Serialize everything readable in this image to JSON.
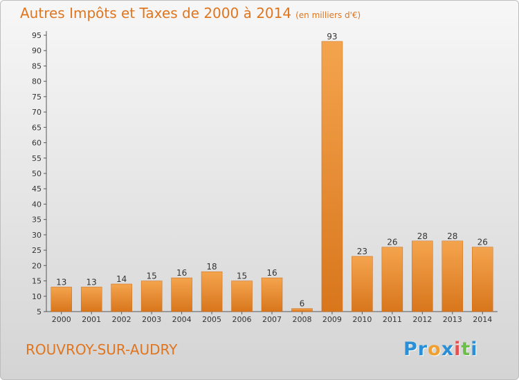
{
  "header": {
    "title": "Autres Impôts et Taxes de 2000 à 2014",
    "unit": "(en milliers d'€)"
  },
  "footer": {
    "commune": "ROUVROY-SUR-AUDRY",
    "logo_letters": [
      "P",
      "r",
      "o",
      "x",
      "i",
      "t",
      "i"
    ],
    "logo_colors": [
      "#2a8fd6",
      "#2a8fd6",
      "#f0a030",
      "#2a8fd6",
      "#e85050",
      "#6cc04a",
      "#2a8fd6"
    ]
  },
  "colors": {
    "title": "#e0751f",
    "bar_light": "#f4a44e",
    "bar_dark": "#d8761c",
    "axis": "#555555"
  },
  "chart_data": {
    "type": "bar",
    "title": "Autres Impôts et Taxes de 2000 à 2014",
    "xlabel": "",
    "ylabel": "",
    "categories": [
      "2000",
      "2001",
      "2002",
      "2003",
      "2004",
      "2005",
      "2006",
      "2007",
      "2008",
      "2009",
      "2010",
      "2011",
      "2012",
      "2013",
      "2014"
    ],
    "values": [
      13,
      13,
      14,
      15,
      16,
      18,
      15,
      16,
      6,
      93,
      23,
      26,
      28,
      28,
      26
    ],
    "ylim": [
      5,
      95
    ],
    "yticks": [
      5,
      10,
      15,
      20,
      25,
      30,
      35,
      40,
      45,
      50,
      55,
      60,
      65,
      70,
      75,
      80,
      85,
      90,
      95
    ],
    "grid": false,
    "legend": "none"
  }
}
